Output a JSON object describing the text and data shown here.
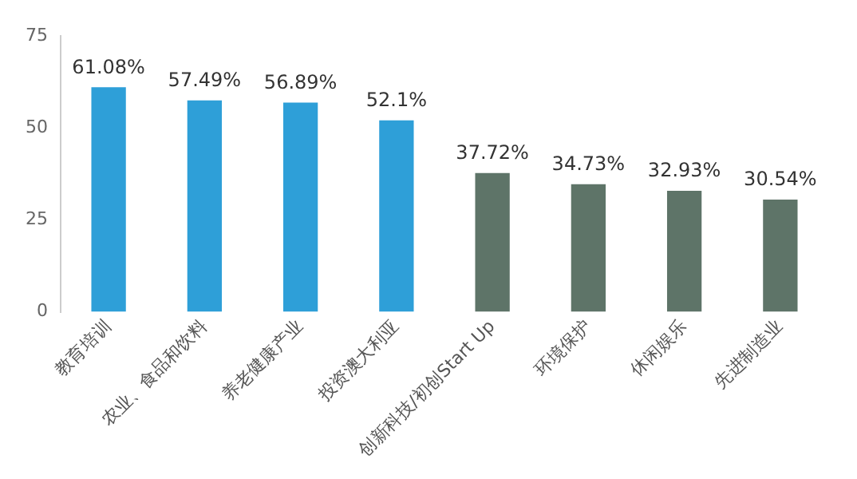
{
  "chart_data": {
    "type": "bar",
    "categories": [
      "教育培训",
      "农业、食品和饮料",
      "养老健康产业",
      "投资澳大利亚",
      "创新科技/初创Start Up",
      "环境保护",
      "休闲娱乐",
      "先进制造业"
    ],
    "values": [
      61.08,
      57.49,
      56.89,
      52.1,
      37.72,
      34.73,
      32.93,
      30.54
    ],
    "colors": [
      "#2e9fd8",
      "#2e9fd8",
      "#2e9fd8",
      "#2e9fd8",
      "#5e7468",
      "#5e7468",
      "#5e7468",
      "#5e7468"
    ],
    "value_labels": [
      "61.08%",
      "57.49%",
      "56.89%",
      "52.1%",
      "37.72%",
      "34.73%",
      "32.93%",
      "30.54%"
    ],
    "ylim": [
      0,
      75
    ],
    "yticks": [
      0,
      25,
      50,
      75
    ],
    "grid": false,
    "legend": false
  }
}
